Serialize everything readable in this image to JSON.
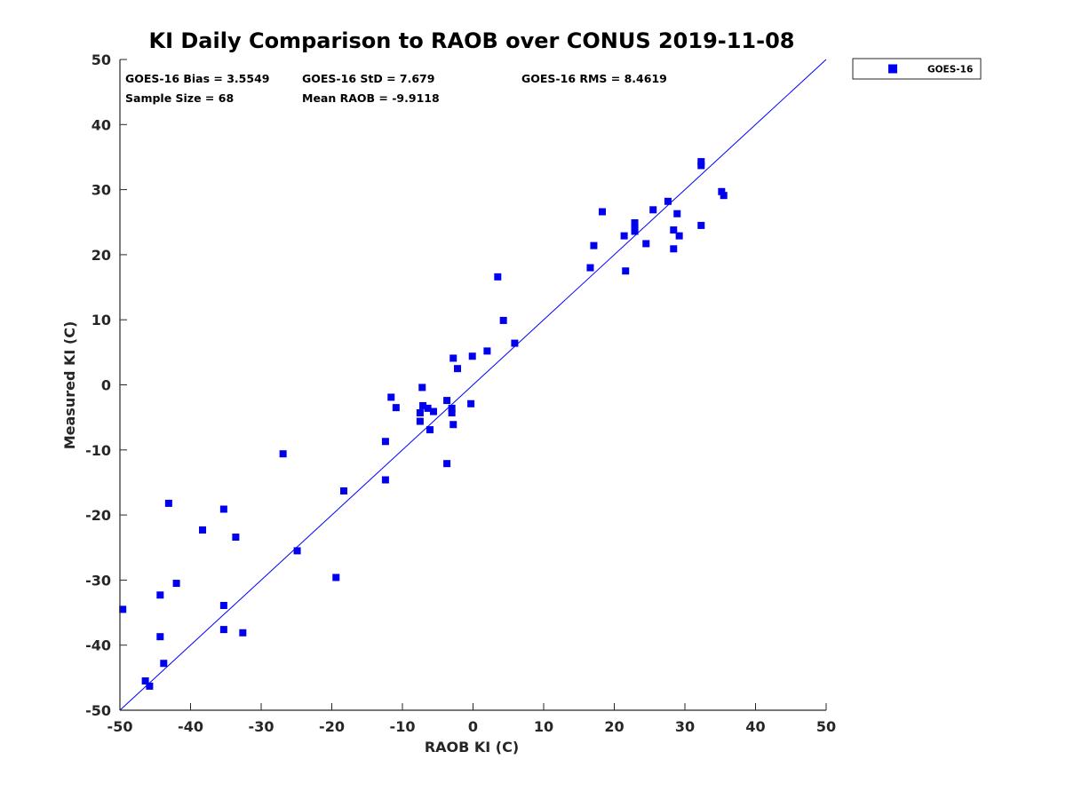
{
  "chart_data": {
    "type": "scatter",
    "title": "KI Daily Comparison to RAOB over CONUS 2019-11-08",
    "xlabel": "RAOB KI (C)",
    "ylabel": "Measured KI (C)",
    "xlim": [
      -50,
      50
    ],
    "ylim": [
      -50,
      50
    ],
    "xticks": [
      "-50",
      "-40",
      "-30",
      "-20",
      "-10",
      "0",
      "10",
      "20",
      "30",
      "40",
      "50"
    ],
    "yticks": [
      "50",
      "40",
      "30",
      "20",
      "10",
      "0",
      "-10",
      "-20",
      "-30",
      "-40",
      "-50"
    ],
    "grid": false,
    "legend_position": "outside-top-right",
    "reference_line": {
      "x": [
        -50,
        50
      ],
      "y": [
        -50,
        50
      ],
      "color": "#0000ff"
    },
    "stats": {
      "bias": "GOES-16 Bias = 3.5549",
      "std": "GOES-16 StD = 7.679",
      "rms": "GOES-16 RMS = 8.4619",
      "sample_size": "Sample Size = 68",
      "mean_raob": "Mean RAOB = -9.9118"
    },
    "series": [
      {
        "name": "GOES-16",
        "color": "#0000ee",
        "marker": "square",
        "points": [
          [
            -49.6,
            -34.5
          ],
          [
            -46.4,
            -45.5
          ],
          [
            -45.8,
            -46.3
          ],
          [
            -44.3,
            -32.3
          ],
          [
            -44.3,
            -38.7
          ],
          [
            -43.8,
            -42.8
          ],
          [
            -43.1,
            -18.2
          ],
          [
            -42.0,
            -30.5
          ],
          [
            -38.3,
            -22.3
          ],
          [
            -35.3,
            -19.1
          ],
          [
            -35.3,
            -33.9
          ],
          [
            -35.3,
            -37.6
          ],
          [
            -33.6,
            -23.4
          ],
          [
            -32.6,
            -38.1
          ],
          [
            -26.9,
            -10.6
          ],
          [
            -24.9,
            -25.5
          ],
          [
            -19.4,
            -29.6
          ],
          [
            -18.3,
            -16.3
          ],
          [
            -12.4,
            -8.7
          ],
          [
            -12.4,
            -14.6
          ],
          [
            -11.6,
            -1.9
          ],
          [
            -10.9,
            -3.5
          ],
          [
            -7.5,
            -4.3
          ],
          [
            -7.5,
            -5.6
          ],
          [
            -7.2,
            -0.4
          ],
          [
            -7.1,
            -3.2
          ],
          [
            -6.4,
            -3.6
          ],
          [
            -6.1,
            -6.9
          ],
          [
            -5.6,
            -4.1
          ],
          [
            -3.7,
            -2.4
          ],
          [
            -3.7,
            -12.1
          ],
          [
            -3.0,
            -3.6
          ],
          [
            -3.0,
            -4.3
          ],
          [
            -2.8,
            4.1
          ],
          [
            -2.8,
            -6.1
          ],
          [
            -2.2,
            2.5
          ],
          [
            -0.3,
            -2.9
          ],
          [
            -0.1,
            4.4
          ],
          [
            2.0,
            5.2
          ],
          [
            3.5,
            16.6
          ],
          [
            4.3,
            9.9
          ],
          [
            5.9,
            6.4
          ],
          [
            16.6,
            18.0
          ],
          [
            17.1,
            21.4
          ],
          [
            18.3,
            26.6
          ],
          [
            21.4,
            22.9
          ],
          [
            21.6,
            17.5
          ],
          [
            22.9,
            24.9
          ],
          [
            22.9,
            24.2
          ],
          [
            22.9,
            23.6
          ],
          [
            24.5,
            21.7
          ],
          [
            25.5,
            26.9
          ],
          [
            27.6,
            28.2
          ],
          [
            28.4,
            23.8
          ],
          [
            28.4,
            20.9
          ],
          [
            28.9,
            26.3
          ],
          [
            29.2,
            22.9
          ],
          [
            32.3,
            34.3
          ],
          [
            32.3,
            33.7
          ],
          [
            32.3,
            24.5
          ],
          [
            35.2,
            29.7
          ],
          [
            35.5,
            29.1
          ]
        ]
      }
    ]
  }
}
